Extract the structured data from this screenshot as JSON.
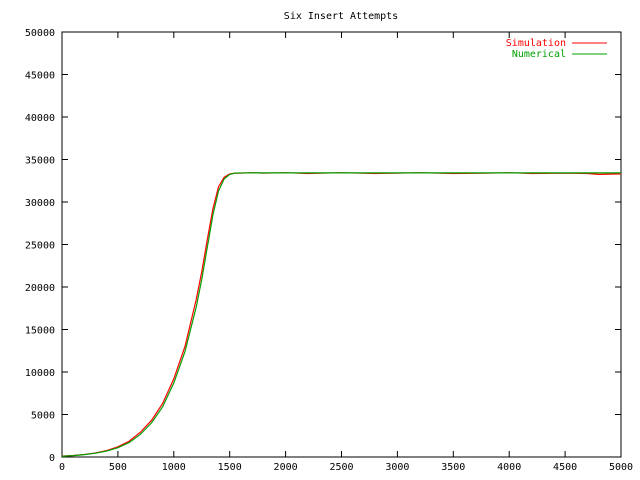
{
  "chart_data": {
    "type": "line",
    "title": "Six Insert Attempts",
    "xlabel": "",
    "ylabel": "",
    "xlim": [
      0,
      5000
    ],
    "ylim": [
      0,
      50000
    ],
    "xticks": [
      0,
      500,
      1000,
      1500,
      2000,
      2500,
      3000,
      3500,
      4000,
      4500,
      5000
    ],
    "yticks": [
      0,
      5000,
      10000,
      15000,
      20000,
      25000,
      30000,
      35000,
      40000,
      45000,
      50000
    ],
    "grid": false,
    "legend_position": "top-right",
    "series": [
      {
        "name": "Simulation",
        "color": "#ff0000",
        "x": [
          0,
          100,
          200,
          300,
          400,
          500,
          600,
          700,
          800,
          900,
          1000,
          1100,
          1200,
          1250,
          1300,
          1350,
          1400,
          1450,
          1500,
          1550,
          1600,
          1700,
          1800,
          2000,
          2200,
          2500,
          2800,
          3000,
          3200,
          3500,
          3800,
          4000,
          4200,
          4500,
          4700,
          4800,
          5000
        ],
        "y": [
          100,
          180,
          300,
          480,
          750,
          1200,
          1850,
          2900,
          4300,
          6300,
          9200,
          13000,
          18500,
          21800,
          25600,
          29200,
          31800,
          32900,
          33300,
          33400,
          33400,
          33450,
          33400,
          33450,
          33350,
          33450,
          33350,
          33400,
          33450,
          33350,
          33400,
          33450,
          33350,
          33400,
          33350,
          33250,
          33300
        ]
      },
      {
        "name": "Numerical",
        "color": "#00a000",
        "x": [
          0,
          100,
          200,
          300,
          400,
          500,
          600,
          700,
          800,
          900,
          1000,
          1100,
          1200,
          1250,
          1300,
          1350,
          1400,
          1450,
          1500,
          1550,
          1600,
          1700,
          1800,
          2000,
          2200,
          2500,
          2800,
          3000,
          3200,
          3500,
          3800,
          4000,
          4200,
          4500,
          4700,
          4800,
          5000
        ],
        "y": [
          90,
          165,
          280,
          450,
          700,
          1100,
          1700,
          2650,
          4000,
          5900,
          8700,
          12400,
          17600,
          20900,
          24700,
          28500,
          31300,
          32700,
          33250,
          33400,
          33420,
          33430,
          33430,
          33430,
          33430,
          33430,
          33430,
          33430,
          33430,
          33430,
          33430,
          33430,
          33430,
          33430,
          33430,
          33430,
          33430
        ]
      }
    ]
  }
}
